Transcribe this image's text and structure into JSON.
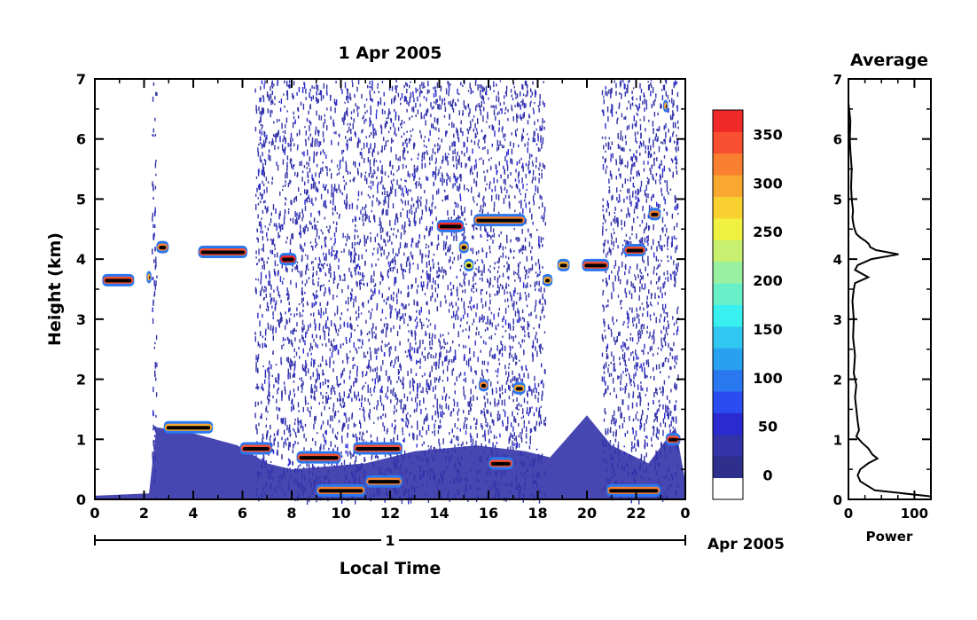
{
  "chart_data": [
    {
      "type": "heatmap",
      "title": "1 Apr 2005",
      "xlabel": "Local Time",
      "ylabel": "Height (km)",
      "xlim": [
        0,
        24
      ],
      "ylim": [
        0,
        7
      ],
      "x_ticks": [
        "0",
        "2",
        "4",
        "6",
        "8",
        "10",
        "12",
        "14",
        "16",
        "18",
        "20",
        "22",
        "0"
      ],
      "y_ticks": [
        "0",
        "1",
        "2",
        "3",
        "4",
        "5",
        "6",
        "7"
      ],
      "date_axis": {
        "day_label": "1",
        "month_label": "Apr 2005"
      },
      "colorbar": {
        "ticks": [
          "0",
          "50",
          "100",
          "150",
          "200",
          "250",
          "300",
          "350"
        ],
        "range": [
          -25,
          375
        ],
        "colors": [
          "#ffffff",
          "#2e2e8c",
          "#3333aa",
          "#2a2ad0",
          "#2a4cf0",
          "#2a78f0",
          "#2aa0f0",
          "#30c8f0",
          "#38f0f0",
          "#6af0c8",
          "#98f0a0",
          "#c8f070",
          "#f0f040",
          "#f8d030",
          "#f8a830",
          "#f88030",
          "#f85030",
          "#f02828"
        ]
      },
      "noise_bands": [
        [
          2.3,
          2.5
        ],
        [
          6.5,
          18.3
        ],
        [
          20.6,
          23.7
        ]
      ],
      "ground_clutter": [
        [
          0,
          0.06
        ],
        [
          2.2,
          0.1
        ],
        [
          2.5,
          1.2
        ],
        [
          4.0,
          1.1
        ],
        [
          5.8,
          0.9
        ],
        [
          7.0,
          0.6
        ],
        [
          8.0,
          0.5
        ],
        [
          11.0,
          0.6
        ],
        [
          13.0,
          0.8
        ],
        [
          15.5,
          0.9
        ],
        [
          17.5,
          0.8
        ],
        [
          18.5,
          0.7
        ],
        [
          20.0,
          1.4
        ],
        [
          21.0,
          0.9
        ],
        [
          22.5,
          0.6
        ],
        [
          23.6,
          1.2
        ],
        [
          24,
          0.3
        ]
      ],
      "echo_layers": [
        {
          "x": [
            0.3,
            1.6
          ],
          "y": 3.65,
          "value": 340
        },
        {
          "x": [
            2.1,
            2.3
          ],
          "y": 3.7,
          "value": 300
        },
        {
          "x": [
            2.5,
            3.0
          ],
          "y": 4.2,
          "value": 330
        },
        {
          "x": [
            4.2,
            6.2
          ],
          "y": 4.12,
          "value": 350
        },
        {
          "x": [
            7.5,
            8.2
          ],
          "y": 4.0,
          "value": 360
        },
        {
          "x": [
            13.9,
            15.0
          ],
          "y": 4.55,
          "value": 360
        },
        {
          "x": [
            14.8,
            15.2
          ],
          "y": 4.2,
          "value": 300
        },
        {
          "x": [
            15.0,
            15.4
          ],
          "y": 3.9,
          "value": 250
        },
        {
          "x": [
            15.4,
            17.5
          ],
          "y": 4.65,
          "value": 320
        },
        {
          "x": [
            17.0,
            17.5
          ],
          "y": 1.85,
          "value": 300
        },
        {
          "x": [
            18.2,
            18.6
          ],
          "y": 3.65,
          "value": 300
        },
        {
          "x": [
            18.8,
            19.3
          ],
          "y": 3.9,
          "value": 300
        },
        {
          "x": [
            19.8,
            20.9
          ],
          "y": 3.9,
          "value": 340
        },
        {
          "x": [
            21.5,
            22.4
          ],
          "y": 4.15,
          "value": 340
        },
        {
          "x": [
            22.5,
            23.0
          ],
          "y": 4.75,
          "value": 320
        },
        {
          "x": [
            23.1,
            23.3
          ],
          "y": 6.55,
          "value": 300
        },
        {
          "x": [
            2.8,
            4.8
          ],
          "y": 1.2,
          "value": 300
        },
        {
          "x": [
            5.9,
            7.2
          ],
          "y": 0.85,
          "value": 350
        },
        {
          "x": [
            8.2,
            10.0
          ],
          "y": 0.7,
          "value": 350
        },
        {
          "x": [
            10.5,
            12.5
          ],
          "y": 0.85,
          "value": 350
        },
        {
          "x": [
            9.0,
            11.0
          ],
          "y": 0.15,
          "value": 320
        },
        {
          "x": [
            11.0,
            12.5
          ],
          "y": 0.3,
          "value": 320
        },
        {
          "x": [
            15.6,
            16.0
          ],
          "y": 1.9,
          "value": 320
        },
        {
          "x": [
            16.0,
            17.0
          ],
          "y": 0.6,
          "value": 340
        },
        {
          "x": [
            20.8,
            23.0
          ],
          "y": 0.15,
          "value": 320
        },
        {
          "x": [
            23.2,
            23.8
          ],
          "y": 1.0,
          "value": 350
        }
      ]
    },
    {
      "type": "line",
      "title": "Average",
      "xlabel": "Power",
      "ylabel": "",
      "xlim": [
        0,
        125
      ],
      "ylim": [
        0,
        7
      ],
      "x_ticks": [
        "0",
        "100"
      ],
      "y_ticks": [
        "0",
        "1",
        "2",
        "3",
        "4",
        "5",
        "6",
        "7"
      ],
      "x": [
        0,
        0,
        0,
        3,
        2,
        3,
        5,
        4,
        5,
        6,
        7,
        6,
        7,
        8,
        10,
        12,
        18,
        26,
        31,
        33,
        42,
        76,
        35,
        14,
        10,
        30,
        10,
        8,
        6,
        8,
        7,
        10,
        8,
        12,
        10,
        12,
        14,
        16,
        12,
        20,
        30,
        36,
        44,
        30,
        18,
        14,
        18,
        40,
        125
      ],
      "y": [
        7.0,
        6.8,
        6.6,
        6.3,
        6.0,
        5.8,
        5.5,
        5.2,
        5.0,
        4.9,
        4.8,
        4.7,
        4.62,
        4.55,
        4.48,
        4.42,
        4.36,
        4.3,
        4.25,
        4.2,
        4.15,
        4.08,
        4.0,
        3.9,
        3.82,
        3.7,
        3.6,
        3.5,
        3.3,
        3.0,
        2.7,
        2.4,
        2.1,
        1.9,
        1.7,
        1.5,
        1.3,
        1.15,
        1.05,
        0.95,
        0.85,
        0.75,
        0.68,
        0.6,
        0.5,
        0.4,
        0.3,
        0.15,
        0.05
      ]
    }
  ]
}
